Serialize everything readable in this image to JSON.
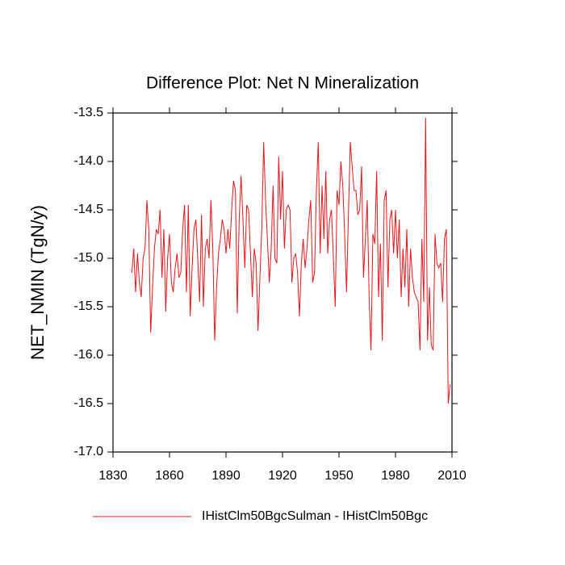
{
  "chart_data": {
    "type": "line",
    "title": "Difference Plot: Net N Mineralization",
    "y_label": "NET_NMIN  (TgN/y)",
    "xlim": [
      1830,
      2010
    ],
    "xticks": [
      1830,
      1860,
      1890,
      1920,
      1950,
      1980,
      2010
    ],
    "ylim": [
      -17.0,
      -13.5
    ],
    "yticks": [
      -13.5,
      {
        "value": -14.0,
        "label": "-14.0"
      },
      -14.5,
      {
        "value": -15.0,
        "label": "-15.0"
      },
      -15.5,
      {
        "value": -16.0,
        "label": "-16.0"
      },
      -16.5,
      {
        "value": -17.0,
        "label": "-17.0"
      }
    ],
    "x": [
      1840,
      1841,
      1842,
      1843,
      1844,
      1845,
      1846,
      1847,
      1848,
      1849,
      1850,
      1851,
      1852,
      1853,
      1854,
      1855,
      1856,
      1857,
      1858,
      1859,
      1860,
      1861,
      1862,
      1863,
      1864,
      1865,
      1866,
      1867,
      1868,
      1869,
      1870,
      1871,
      1872,
      1873,
      1874,
      1875,
      1876,
      1877,
      1878,
      1879,
      1880,
      1881,
      1882,
      1883,
      1884,
      1885,
      1886,
      1887,
      1888,
      1889,
      1890,
      1891,
      1892,
      1893,
      1894,
      1895,
      1896,
      1897,
      1898,
      1899,
      1900,
      1901,
      1902,
      1903,
      1904,
      1905,
      1906,
      1907,
      1908,
      1909,
      1910,
      1911,
      1912,
      1913,
      1914,
      1915,
      1916,
      1917,
      1918,
      1919,
      1920,
      1921,
      1922,
      1923,
      1924,
      1925,
      1926,
      1927,
      1928,
      1929,
      1930,
      1931,
      1932,
      1933,
      1934,
      1935,
      1936,
      1937,
      1938,
      1939,
      1940,
      1941,
      1942,
      1943,
      1944,
      1945,
      1946,
      1947,
      1948,
      1949,
      1950,
      1951,
      1952,
      1953,
      1954,
      1955,
      1956,
      1957,
      1958,
      1959,
      1960,
      1961,
      1962,
      1963,
      1964,
      1965,
      1966,
      1967,
      1968,
      1969,
      1970,
      1971,
      1972,
      1973,
      1974,
      1975,
      1976,
      1977,
      1978,
      1979,
      1980,
      1981,
      1982,
      1983,
      1984,
      1985,
      1986,
      1987,
      1988,
      1989,
      1990,
      1991,
      1992,
      1993,
      1994,
      1995,
      1996,
      1997,
      1998,
      1999,
      2000,
      2001,
      2002,
      2003,
      2004,
      2005,
      2006,
      2007,
      2008,
      2009
    ],
    "series": [
      {
        "name": "IHistClm50BgcSulman - IHistClm50Bgc",
        "color": "#e8141a",
        "values": [
          -15.15,
          -14.9,
          -15.35,
          -14.95,
          -15.25,
          -15.4,
          -15.0,
          -14.9,
          -14.4,
          -14.7,
          -15.77,
          -15.3,
          -14.9,
          -14.7,
          -14.75,
          -14.5,
          -15.2,
          -14.7,
          -15.55,
          -15.0,
          -14.75,
          -15.25,
          -15.35,
          -15.1,
          -14.95,
          -15.2,
          -15.15,
          -14.7,
          -14.45,
          -15.35,
          -14.45,
          -15.6,
          -15.1,
          -14.7,
          -14.6,
          -15.0,
          -15.45,
          -14.55,
          -15.5,
          -14.9,
          -14.8,
          -15.0,
          -14.4,
          -14.9,
          -15.85,
          -15.3,
          -14.95,
          -14.8,
          -14.6,
          -14.7,
          -14.95,
          -14.7,
          -14.9,
          -14.5,
          -14.2,
          -14.3,
          -15.57,
          -14.6,
          -14.15,
          -14.6,
          -15.1,
          -14.45,
          -14.5,
          -14.95,
          -15.4,
          -14.9,
          -15.05,
          -15.75,
          -15.2,
          -14.7,
          -13.8,
          -14.4,
          -14.8,
          -15.25,
          -14.9,
          -14.25,
          -15.0,
          -15.05,
          -13.95,
          -14.6,
          -14.1,
          -14.9,
          -14.5,
          -14.45,
          -14.5,
          -15.25,
          -15.0,
          -14.95,
          -15.15,
          -15.6,
          -15.05,
          -14.8,
          -15.1,
          -14.9,
          -14.6,
          -14.4,
          -15.25,
          -15.15,
          -14.3,
          -13.8,
          -14.95,
          -14.25,
          -14.8,
          -14.1,
          -14.95,
          -14.6,
          -14.5,
          -15.0,
          -15.5,
          -14.3,
          -14.45,
          -14.0,
          -14.25,
          -14.75,
          -15.35,
          -14.55,
          -13.8,
          -14.05,
          -14.3,
          -14.3,
          -14.55,
          -14.5,
          -14.05,
          -15.2,
          -14.8,
          -14.4,
          -15.4,
          -15.95,
          -14.75,
          -14.85,
          -14.1,
          -15.4,
          -14.85,
          -15.85,
          -14.4,
          -14.3,
          -15.3,
          -14.6,
          -14.5,
          -14.95,
          -14.5,
          -15.0,
          -14.6,
          -15.4,
          -14.9,
          -15.3,
          -14.7,
          -15.5,
          -14.9,
          -15.2,
          -15.35,
          -15.4,
          -15.45,
          -15.95,
          -14.8,
          -15.45,
          -13.55,
          -15.85,
          -15.3,
          -15.9,
          -15.95,
          -14.75,
          -15.05,
          -15.1,
          -15.05,
          -15.45,
          -14.8,
          -14.7,
          -16.5,
          -16.3
        ]
      }
    ]
  }
}
